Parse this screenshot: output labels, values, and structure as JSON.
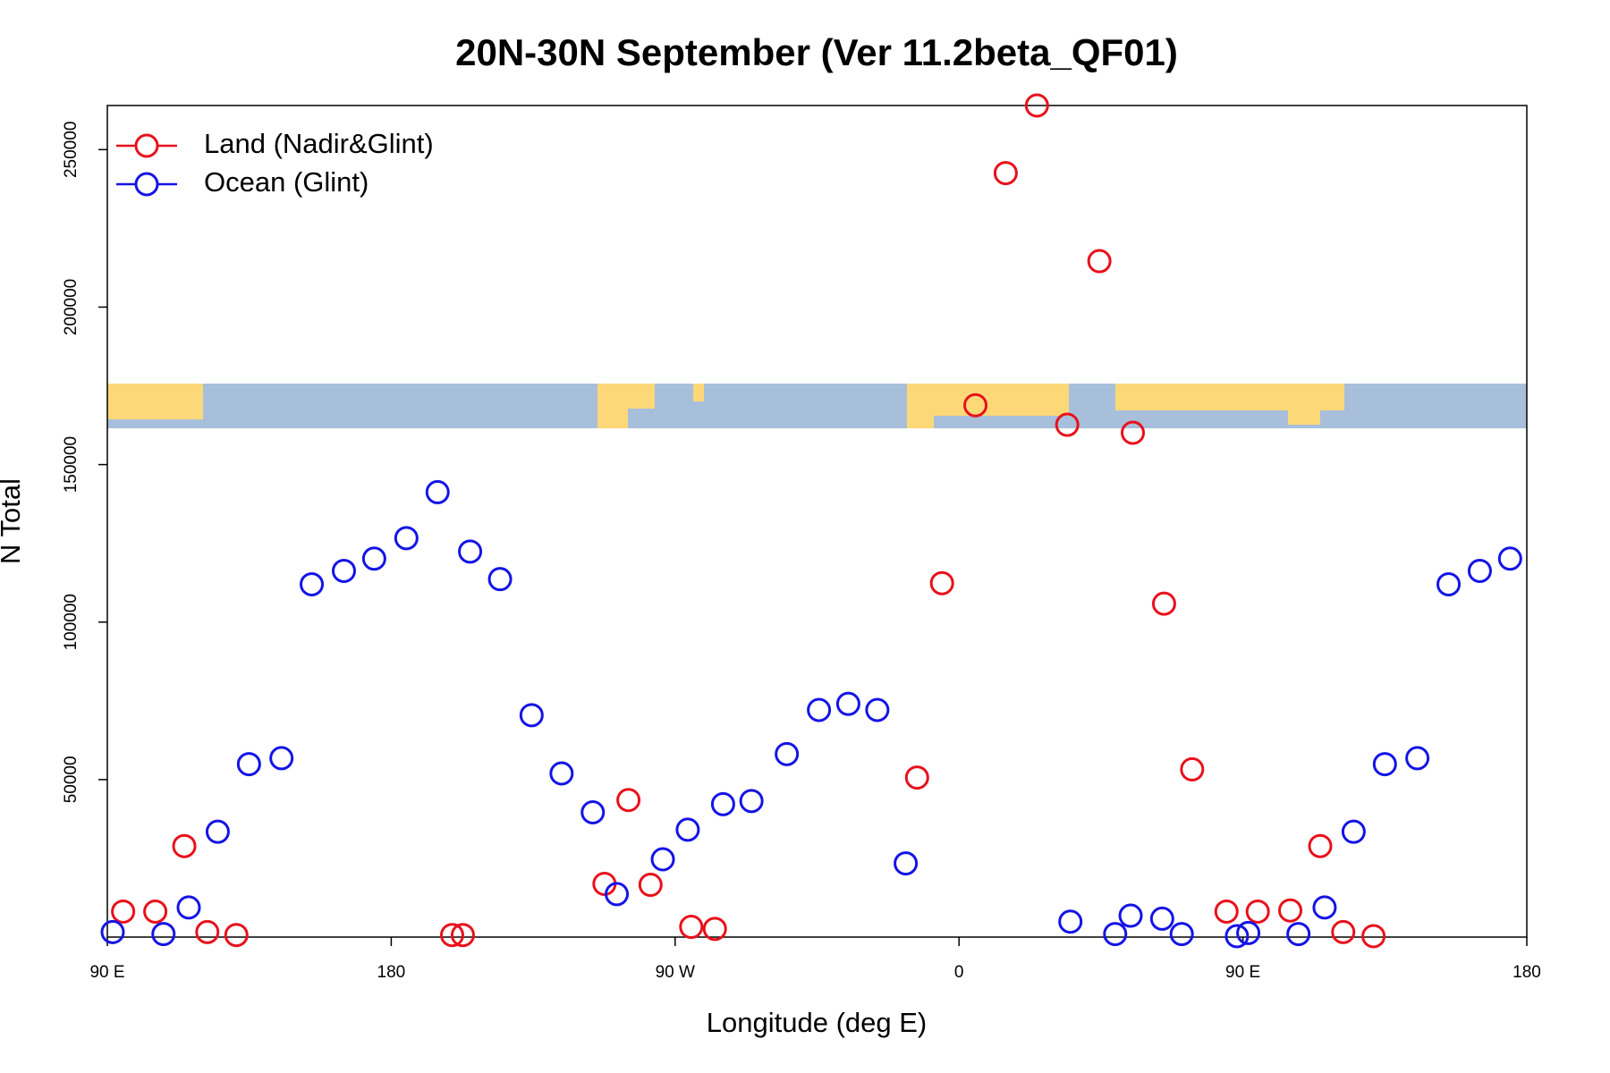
{
  "chart_data": {
    "type": "scatter",
    "title": "20N-30N September (Ver 11.2beta_QF01)",
    "x_label": "Longitude (deg E)",
    "y_label": "N Total",
    "xlim": [
      90,
      540
    ],
    "ylim": [
      0,
      264000
    ],
    "xticks": [
      {
        "value": 90,
        "label": "90 E"
      },
      180,
      {
        "value": 270,
        "label": "90 W"
      },
      {
        "value": 360,
        "label": "0"
      },
      {
        "value": 450,
        "label": "90 E"
      },
      {
        "value": 540,
        "label": "180"
      }
    ],
    "yticks": [
      50000,
      100000,
      150000,
      200000,
      250000
    ],
    "legend": "top-left",
    "series": [
      {
        "name": "Land (Nadir&Glint)",
        "color": "#e8111b",
        "x": [
          95,
          105.2,
          114.4,
          121.7,
          130.9,
          199.3,
          202.7,
          247.6,
          255.2,
          262.2,
          275.1,
          282.6,
          346.7,
          354.6,
          365.2,
          374.8,
          384.7,
          394.3,
          404.5,
          415.1,
          425.0,
          433.9,
          444.8,
          454.7,
          465.0,
          474.5,
          481.8,
          491.4
        ],
        "values": [
          8100,
          8100,
          28900,
          1600,
          650,
          650,
          650,
          16900,
          43500,
          16600,
          3250,
          2600,
          50650,
          112350,
          168850,
          242550,
          264000,
          162650,
          214600,
          160100,
          105850,
          53250,
          8100,
          8100,
          8450,
          28900,
          1600,
          300
        ]
      },
      {
        "name": "Ocean (Glint)",
        "color": "#1414e6",
        "x": [
          91.7,
          107.8,
          115.8,
          125.0,
          134.9,
          145.2,
          154.8,
          165.0,
          174.6,
          184.8,
          194.7,
          205.0,
          214.5,
          224.5,
          234.0,
          243.9,
          251.5,
          266.1,
          274.0,
          285.2,
          294.2,
          305.4,
          315.6,
          324.9,
          334.1,
          343.1,
          395.3,
          409.5,
          414.4,
          424.4,
          430.6,
          448.1,
          451.7,
          467.6,
          475.9,
          485.1,
          495.0,
          505.3,
          515.2,
          525.1,
          534.7
        ],
        "values": [
          1600,
          970,
          9400,
          33450,
          54900,
          56800,
          112000,
          116250,
          120150,
          126650,
          141250,
          122400,
          113650,
          70450,
          51950,
          39600,
          13650,
          24700,
          34100,
          42200,
          43200,
          58100,
          72100,
          74050,
          72100,
          23400,
          4900,
          970,
          6800,
          5850,
          970,
          300,
          1300,
          970,
          9400,
          33450,
          54900,
          56800,
          112000,
          116250,
          120150
        ]
      }
    ]
  }
}
